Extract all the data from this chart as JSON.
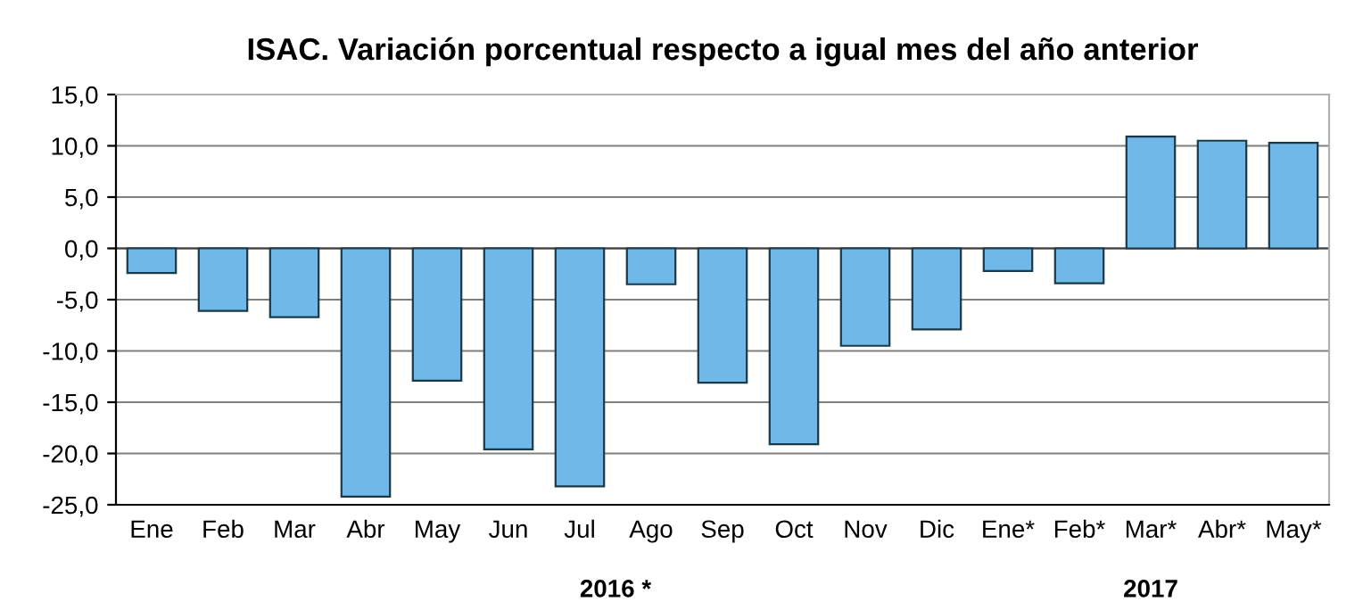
{
  "chart_data": {
    "type": "bar",
    "title": "ISAC. Variación porcentual respecto a igual mes del año anterior",
    "categories": [
      "Ene",
      "Feb",
      "Mar",
      "Abr",
      "May",
      "Jun",
      "Jul",
      "Ago",
      "Sep",
      "Oct",
      "Nov",
      "Dic",
      "Ene*",
      "Feb*",
      "Mar*",
      "Abr*",
      "May*"
    ],
    "values": [
      -2.4,
      -6.1,
      -6.7,
      -24.2,
      -12.9,
      -19.6,
      -23.2,
      -3.5,
      -13.1,
      -19.1,
      -9.5,
      -7.9,
      -2.2,
      -3.4,
      10.9,
      10.5,
      10.3
    ],
    "color": "#6fb8e8",
    "ylim": [
      -25,
      15
    ],
    "yticks": [
      {
        "value": -25,
        "label": "-25,0"
      },
      {
        "value": -20,
        "label": "-20,0"
      },
      {
        "value": -15,
        "label": "-15,0"
      },
      {
        "value": -10,
        "label": "-10,0"
      },
      {
        "value": -5,
        "label": "-5,0"
      },
      {
        "value": 0,
        "label": "0,0"
      },
      {
        "value": 5,
        "label": "5,0"
      },
      {
        "value": 10,
        "label": "10,0"
      },
      {
        "value": 15,
        "label": "15,0"
      }
    ],
    "grid": "y",
    "annotations": [
      "2016 *",
      "2017"
    ]
  }
}
